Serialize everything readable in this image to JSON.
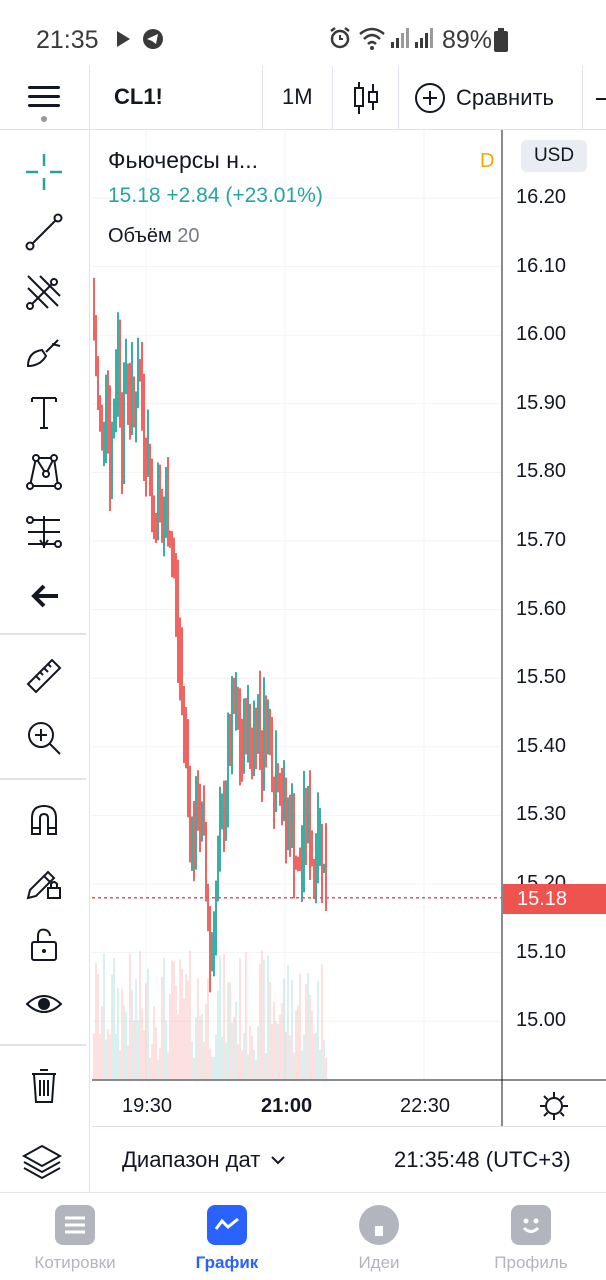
{
  "status_bar": {
    "time": "21:35",
    "battery": "89%",
    "icons": [
      "play-icon",
      "telegram-icon",
      "alarm-icon",
      "wifi-icon",
      "signal-icon",
      "signal-icon",
      "battery-icon"
    ]
  },
  "toolbar": {
    "symbol": "CL1!",
    "interval": "1M",
    "compare_label": "Сравнить"
  },
  "legend": {
    "title": "Фьючерсы н...",
    "period_badge": "D",
    "price_line": "15.18  +2.84 (+23.01%)",
    "volume_label": "Объём",
    "volume_value": "20"
  },
  "currency": "USD",
  "colors": {
    "up": "#26a69a",
    "down": "#ef5350",
    "accent": "#2962ff",
    "period_badge": "#f7a600"
  },
  "chart_data": {
    "type": "candlestick",
    "y_ticks": [
      "16.20",
      "16.10",
      "16.00",
      "15.90",
      "15.80",
      "15.70",
      "15.60",
      "15.50",
      "15.40",
      "15.30",
      "15.20",
      "15.10",
      "15.00"
    ],
    "x_ticks": [
      "19:30",
      "21:00",
      "22:30"
    ],
    "ylim": [
      14.92,
      16.28
    ],
    "last_price": "15.18",
    "price_path": [
      [
        0,
        16.05
      ],
      [
        6,
        15.9
      ],
      [
        10,
        15.85
      ],
      [
        14,
        15.95
      ],
      [
        18,
        15.8
      ],
      [
        22,
        15.9
      ],
      [
        26,
        16.0
      ],
      [
        30,
        15.85
      ],
      [
        34,
        15.95
      ],
      [
        38,
        15.92
      ],
      [
        42,
        15.88
      ],
      [
        46,
        15.96
      ],
      [
        50,
        15.9
      ],
      [
        54,
        15.85
      ],
      [
        58,
        15.8
      ],
      [
        62,
        15.72
      ],
      [
        66,
        15.78
      ],
      [
        70,
        15.7
      ],
      [
        74,
        15.75
      ],
      [
        78,
        15.72
      ],
      [
        82,
        15.65
      ],
      [
        86,
        15.55
      ],
      [
        90,
        15.48
      ],
      [
        94,
        15.4
      ],
      [
        98,
        15.3
      ],
      [
        102,
        15.25
      ],
      [
        106,
        15.32
      ],
      [
        110,
        15.28
      ],
      [
        114,
        15.2
      ],
      [
        118,
        15.1
      ],
      [
        122,
        15.15
      ],
      [
        126,
        15.22
      ],
      [
        130,
        15.28
      ],
      [
        134,
        15.35
      ],
      [
        138,
        15.4
      ],
      [
        142,
        15.45
      ],
      [
        146,
        15.42
      ],
      [
        150,
        15.38
      ],
      [
        154,
        15.45
      ],
      [
        158,
        15.4
      ],
      [
        162,
        15.42
      ],
      [
        166,
        15.46
      ],
      [
        170,
        15.4
      ],
      [
        174,
        15.45
      ],
      [
        178,
        15.42
      ],
      [
        182,
        15.35
      ],
      [
        186,
        15.38
      ],
      [
        190,
        15.33
      ],
      [
        194,
        15.28
      ],
      [
        198,
        15.3
      ],
      [
        202,
        15.26
      ],
      [
        206,
        15.2
      ],
      [
        210,
        15.25
      ],
      [
        214,
        15.3
      ],
      [
        218,
        15.27
      ],
      [
        222,
        15.22
      ],
      [
        226,
        15.3
      ],
      [
        230,
        15.25
      ],
      [
        234,
        15.18
      ]
    ]
  },
  "range": {
    "label": "Диапазон дат",
    "time": "21:35:48 (UTC+3)"
  },
  "tabs": [
    {
      "label": "Котировки"
    },
    {
      "label": "График"
    },
    {
      "label": "Идеи"
    },
    {
      "label": "Профиль"
    }
  ]
}
